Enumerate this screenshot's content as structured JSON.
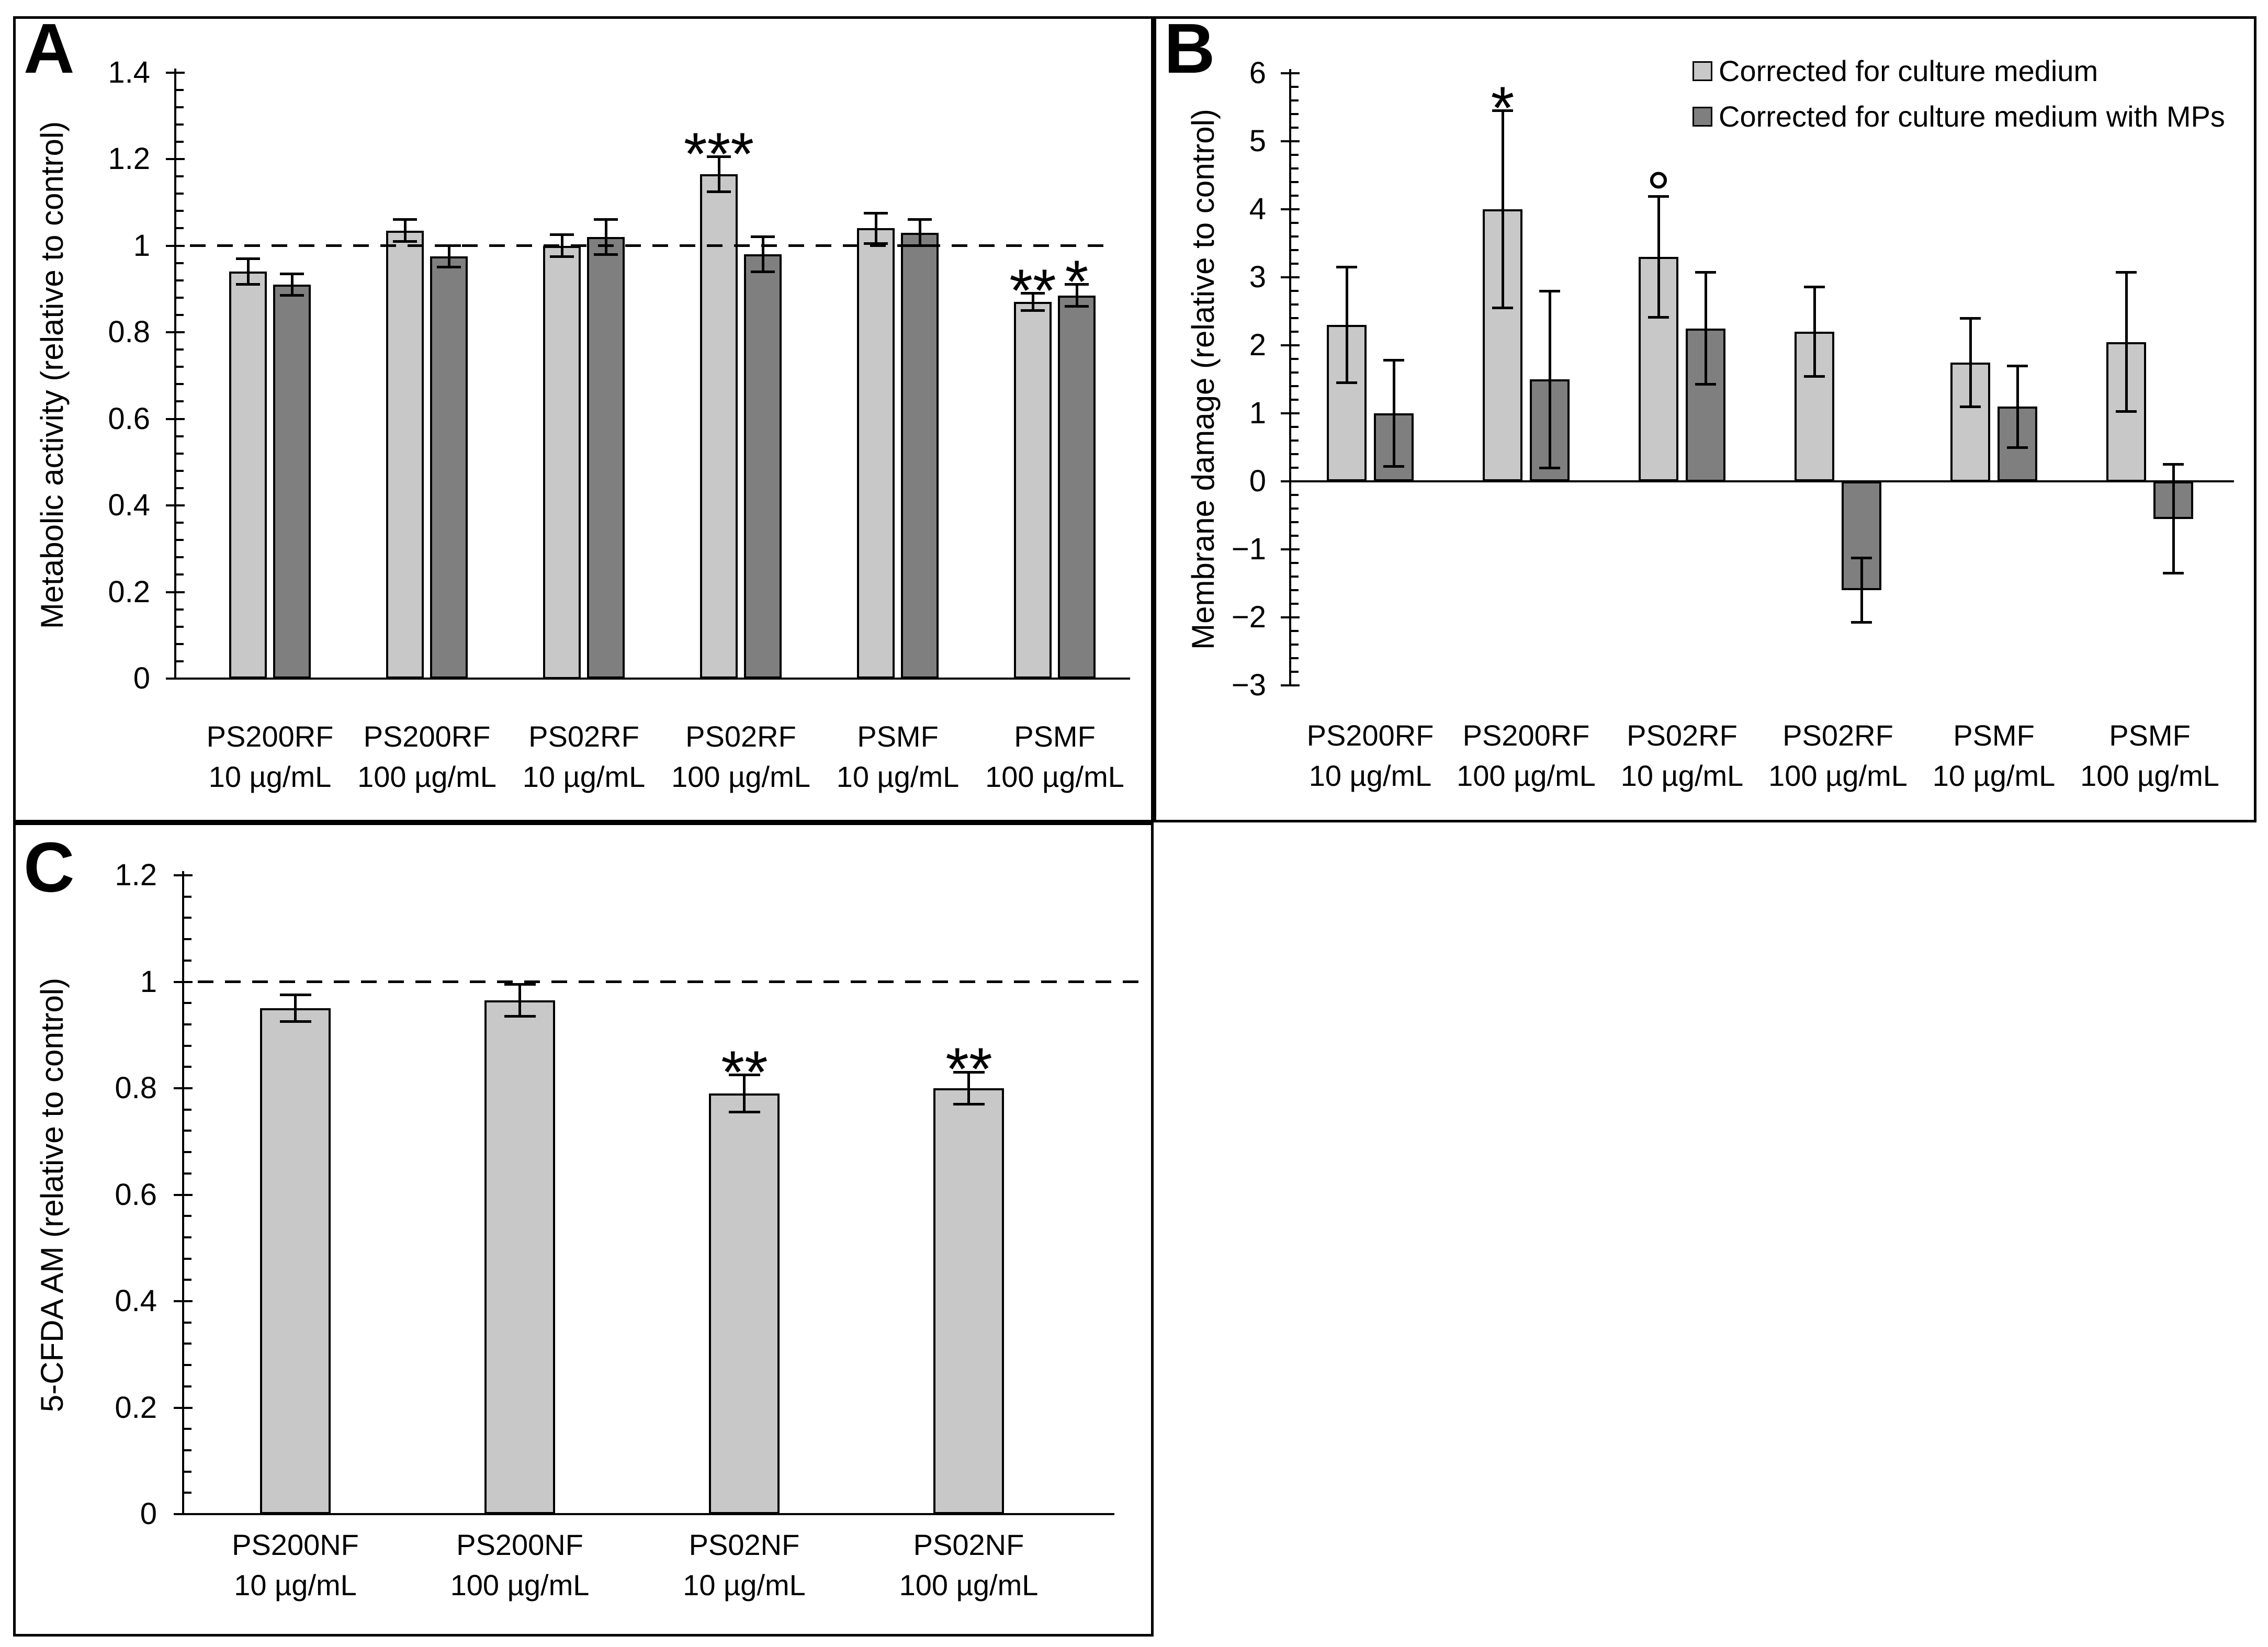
{
  "figure": {
    "background": "#ffffff",
    "border_color": "#000000"
  },
  "colors": {
    "light": "#c8c8c8",
    "dark": "#7f7f7f",
    "line": "#000000",
    "background": "#ffffff"
  },
  "chart_data": [
    {
      "id": "A",
      "panel_label": "A",
      "type": "bar",
      "ylabel": "Metabolic activity (relative to control)",
      "xlabel": "",
      "ylim": [
        0,
        1.4
      ],
      "ytick_step": 0.2,
      "yminor_step": 0.04,
      "ytick_labels": [
        "0",
        "0.2",
        "0.4",
        "0.6",
        "0.8",
        "1",
        "1.2",
        "1.4"
      ],
      "reference_line": 1,
      "grid": false,
      "categories": [
        [
          "PS200RF",
          "10 µg/mL"
        ],
        [
          "PS200RF",
          "100 µg/mL"
        ],
        [
          "PS02RF",
          "10 µg/mL"
        ],
        [
          "PS02RF",
          "100 µg/mL"
        ],
        [
          "PSMF",
          "10 µg/mL"
        ],
        [
          "PSMF",
          "100 µg/mL"
        ]
      ],
      "series": [
        {
          "name": "Corrected for culture medium",
          "color": "light",
          "values": [
            0.94,
            1.035,
            1.0,
            1.165,
            1.04,
            0.87
          ],
          "errors": [
            0.03,
            0.025,
            0.025,
            0.04,
            0.035,
            0.02
          ]
        },
        {
          "name": "Corrected for culture medium with MPs",
          "color": "dark",
          "values": [
            0.91,
            0.975,
            1.02,
            0.98,
            1.03,
            0.885
          ],
          "errors": [
            0.025,
            0.025,
            0.04,
            0.04,
            0.03,
            0.025
          ]
        }
      ],
      "annotations": [
        {
          "text": "***",
          "series": 0,
          "category": 3
        },
        {
          "text": "**",
          "series": 0,
          "category": 5
        },
        {
          "text": "*",
          "series": 1,
          "category": 5
        }
      ]
    },
    {
      "id": "B",
      "panel_label": "B",
      "type": "bar",
      "ylabel": "Membrane damage (relative to control)",
      "xlabel": "",
      "ylim": [
        -3,
        6
      ],
      "ytick_step": 1,
      "yminor_step": 0.2,
      "ytick_labels": [
        "−3",
        "−2",
        "−1",
        "0",
        "1",
        "2",
        "3",
        "4",
        "5",
        "6"
      ],
      "grid": false,
      "legend": {
        "position": "top-right",
        "items": [
          {
            "label": "Corrected for culture medium",
            "color": "light"
          },
          {
            "label": "Corrected for culture medium with MPs",
            "color": "dark"
          }
        ]
      },
      "categories": [
        [
          "PS200RF",
          "10 µg/mL"
        ],
        [
          "PS200RF",
          "100 µg/mL"
        ],
        [
          "PS02RF",
          "10 µg/mL"
        ],
        [
          "PS02RF",
          "100 µg/mL"
        ],
        [
          "PSMF",
          "10 µg/mL"
        ],
        [
          "PSMF",
          "100 µg/mL"
        ]
      ],
      "series": [
        {
          "name": "Corrected for culture medium",
          "color": "light",
          "values": [
            2.3,
            4.0,
            3.3,
            2.2,
            1.75,
            2.05
          ],
          "errors": [
            0.85,
            1.45,
            0.89,
            0.66,
            0.65,
            1.02
          ]
        },
        {
          "name": "Corrected for culture medium with MPs",
          "color": "dark",
          "values": [
            1.0,
            1.5,
            2.25,
            -1.6,
            1.1,
            -0.55
          ],
          "errors": [
            0.78,
            1.3,
            0.82,
            0.47,
            0.6,
            0.8
          ]
        }
      ],
      "annotations": [
        {
          "text": "*",
          "series": 0,
          "category": 1
        },
        {
          "text": "°",
          "series": 0,
          "category": 2
        }
      ]
    },
    {
      "id": "C",
      "panel_label": "C",
      "type": "bar",
      "ylabel": "5-CFDA AM (relative to control)",
      "xlabel": "",
      "ylim": [
        0,
        1.2
      ],
      "ytick_step": 0.2,
      "yminor_step": 0.04,
      "ytick_labels": [
        "0",
        "0.2",
        "0.4",
        "0.6",
        "0.8",
        "1",
        "1.2"
      ],
      "reference_line": 1,
      "grid": false,
      "categories": [
        [
          "PS200NF",
          "10 µg/mL"
        ],
        [
          "PS200NF",
          "100 µg/mL"
        ],
        [
          "PS02NF",
          "10 µg/mL"
        ],
        [
          "PS02NF",
          "100 µg/mL"
        ]
      ],
      "series": [
        {
          "name": "5-CFDA AM",
          "color": "light",
          "values": [
            0.95,
            0.965,
            0.79,
            0.8
          ],
          "errors": [
            0.025,
            0.03,
            0.035,
            0.03
          ]
        }
      ],
      "annotations": [
        {
          "text": "**",
          "series": 0,
          "category": 2
        },
        {
          "text": "**",
          "series": 0,
          "category": 3
        }
      ]
    }
  ]
}
